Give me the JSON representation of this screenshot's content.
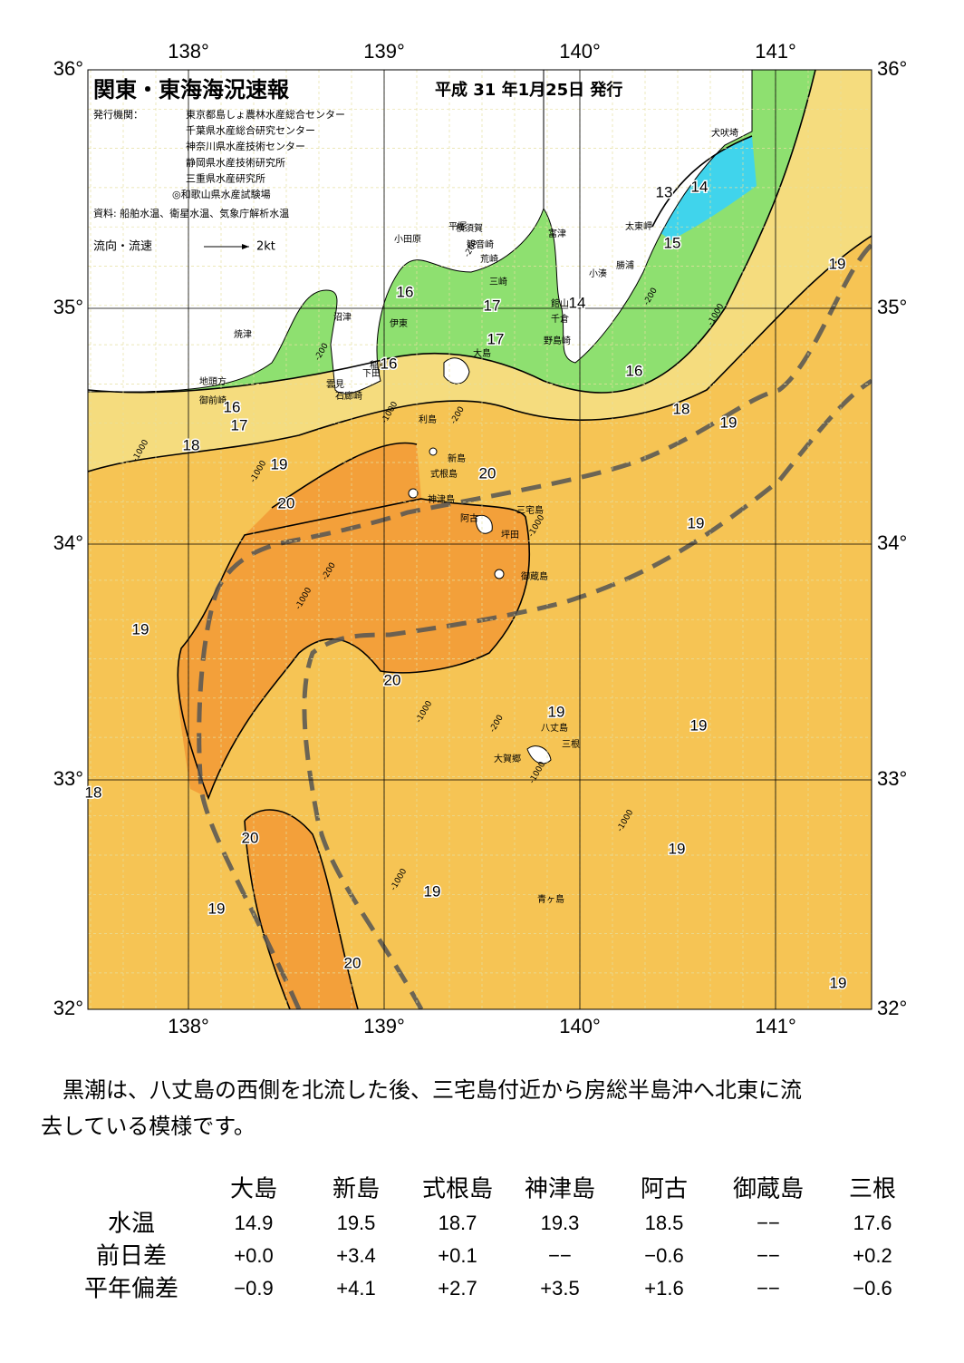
{
  "header": {
    "title": "関東・東海海況速報",
    "date": "平成 31 年1月25日 発行",
    "issuer_label": "発行機関：",
    "issuers": [
      "東京都島しょ農林水産総合センター",
      "千葉県水産総合研究センター",
      "神奈川県水産技術センター",
      "静岡県水産技術研究所",
      "三重県水産研究所",
      "◎和歌山県水産試験場"
    ],
    "source": "資料: 船舶水温、衛星水温、気象庁解析水温",
    "legend_label": "流向・流速",
    "legend_speed": "2kt"
  },
  "map": {
    "lon_labels": [
      "138°",
      "139°",
      "140°",
      "141°"
    ],
    "lat_labels": [
      "36°",
      "35°",
      "34°",
      "33°",
      "32°"
    ],
    "places": [
      "犬吠埼",
      "太東岬",
      "勝浦",
      "小湊",
      "館山",
      "千倉",
      "野島崎",
      "富津",
      "横須賀",
      "観音崎",
      "荒崎",
      "三崎",
      "平塚",
      "小田原",
      "沼津",
      "伊東",
      "焼津",
      "稲取",
      "下田",
      "雲見",
      "石廊崎",
      "地頭方",
      "御前崎",
      "大島",
      "利島",
      "新島",
      "式根島",
      "神津島",
      "三宅島",
      "阿古",
      "坪田",
      "御蔵島",
      "八丈島",
      "三根",
      "大賀郷",
      "青ヶ島"
    ],
    "isotherm_labels": [
      13,
      14,
      15,
      14,
      16,
      17,
      17,
      16,
      16,
      16,
      17,
      18,
      18,
      19,
      19,
      20,
      20,
      19,
      19,
      20,
      19,
      19,
      18,
      20,
      19,
      19,
      19,
      20,
      19,
      19
    ],
    "depth_labels": [
      -200,
      -200,
      -1000,
      -200,
      -1000,
      -200,
      -1000,
      -1000,
      -200,
      -1000,
      -1000,
      -1000,
      -200,
      -1000,
      -1000,
      -1000
    ]
  },
  "summary": [
    "　黒潮は、八丈島の西側を北流した後、三宅島付近から房総半島沖へ北東に流",
    "去している模様です。"
  ],
  "table": {
    "columns": [
      "大島",
      "新島",
      "式根島",
      "神津島",
      "阿古",
      "御蔵島",
      "三根"
    ],
    "rows": [
      {
        "label": "水温",
        "values": [
          "14.9",
          "19.5",
          "18.7",
          "19.3",
          "18.5",
          "−−",
          "17.6"
        ]
      },
      {
        "label": "前日差",
        "values": [
          "+0.0",
          "+3.4",
          "+0.1",
          "−−",
          "−0.6",
          "−−",
          "+0.2"
        ]
      },
      {
        "label": "平年偏差",
        "values": [
          "−0.9",
          "+4.1",
          "+2.7",
          "+3.5",
          "+1.6",
          "−−",
          "−0.6"
        ]
      }
    ]
  }
}
